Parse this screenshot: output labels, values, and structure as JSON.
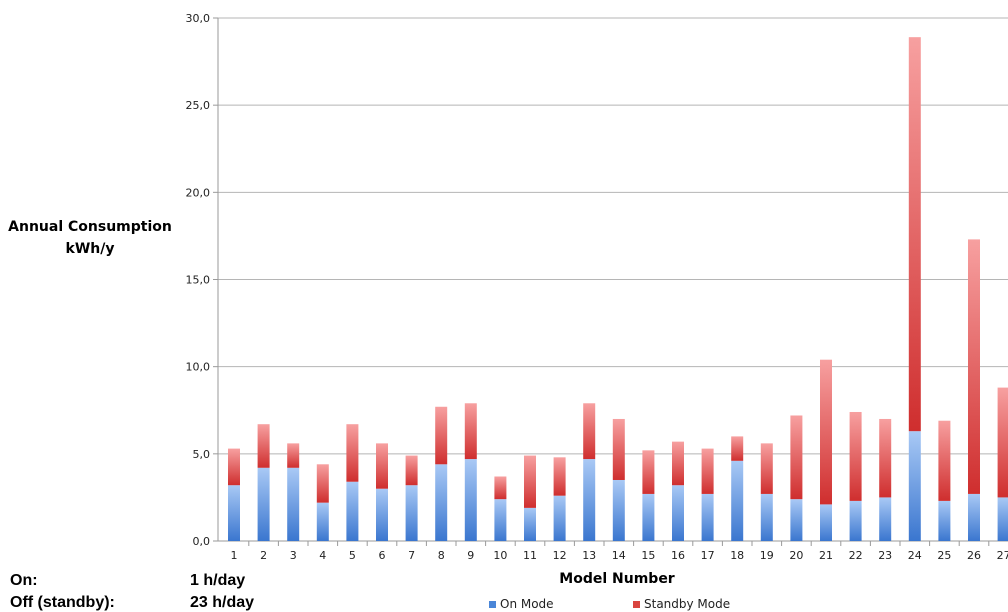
{
  "chart_data": {
    "type": "bar",
    "stacked": true,
    "xlabel": "Model Number",
    "ylabel": [
      "Annual Consumption",
      "kWh/y"
    ],
    "ylim": [
      0,
      30
    ],
    "yticks": [
      "0,0",
      "5,0",
      "10,0",
      "15,0",
      "20,0",
      "25,0",
      "30,0"
    ],
    "ytick_values": [
      0,
      5,
      10,
      15,
      20,
      25,
      30
    ],
    "grid": true,
    "legend_position": "bottom",
    "categories": [
      "1",
      "2",
      "3",
      "4",
      "5",
      "6",
      "7",
      "8",
      "9",
      "10",
      "11",
      "12",
      "13",
      "14",
      "15",
      "16",
      "17",
      "18",
      "19",
      "20",
      "21",
      "22",
      "23",
      "24",
      "25",
      "26",
      "27"
    ],
    "series": [
      {
        "name": "On Mode",
        "color": "#4a86d8",
        "values": [
          3.2,
          4.2,
          4.2,
          2.2,
          3.4,
          3.0,
          3.2,
          4.4,
          4.7,
          2.4,
          1.9,
          2.6,
          4.7,
          3.5,
          2.7,
          3.2,
          2.7,
          4.6,
          2.7,
          2.4,
          2.1,
          2.3,
          2.5,
          6.3,
          2.3,
          2.7,
          2.5
        ]
      },
      {
        "name": "Standby Mode",
        "color": "#d9443f",
        "values": [
          2.1,
          2.5,
          1.4,
          2.2,
          3.3,
          2.6,
          1.7,
          3.3,
          3.2,
          1.3,
          3.0,
          2.2,
          3.2,
          3.5,
          2.5,
          2.5,
          2.6,
          1.4,
          2.9,
          4.8,
          8.3,
          5.1,
          4.5,
          22.6,
          4.6,
          14.6,
          6.3
        ]
      }
    ]
  },
  "usage": {
    "on_label": "On:",
    "on_value": "1 h/day",
    "off_label": "Off (standby):",
    "off_value": "23 h/day"
  }
}
